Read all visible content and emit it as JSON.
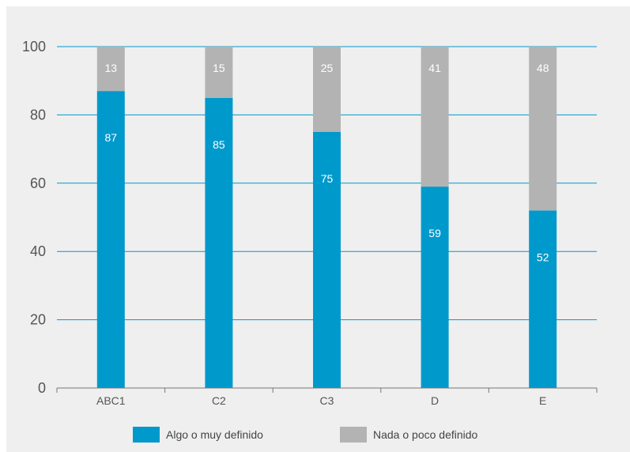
{
  "colors": {
    "series_1": "#0099cc",
    "series_2": "#b3b3b3",
    "gridline": "#0099cc",
    "axis": "#777777",
    "panel": "#efefef"
  },
  "chart_data": {
    "type": "bar",
    "stacked": true,
    "categories": [
      "ABC1",
      "C2",
      "C3",
      "D",
      "E"
    ],
    "series": [
      {
        "name": "Algo o muy definido",
        "values": [
          87,
          85,
          75,
          59,
          52
        ]
      },
      {
        "name": "Nada o poco definido",
        "values": [
          13,
          15,
          25,
          41,
          48
        ]
      }
    ],
    "yticks": [
      "0",
      "20",
      "40",
      "60",
      "80",
      "100"
    ],
    "ylim": [
      0,
      100
    ],
    "grid": true,
    "legend_position": "bottom",
    "data_labels": true
  }
}
